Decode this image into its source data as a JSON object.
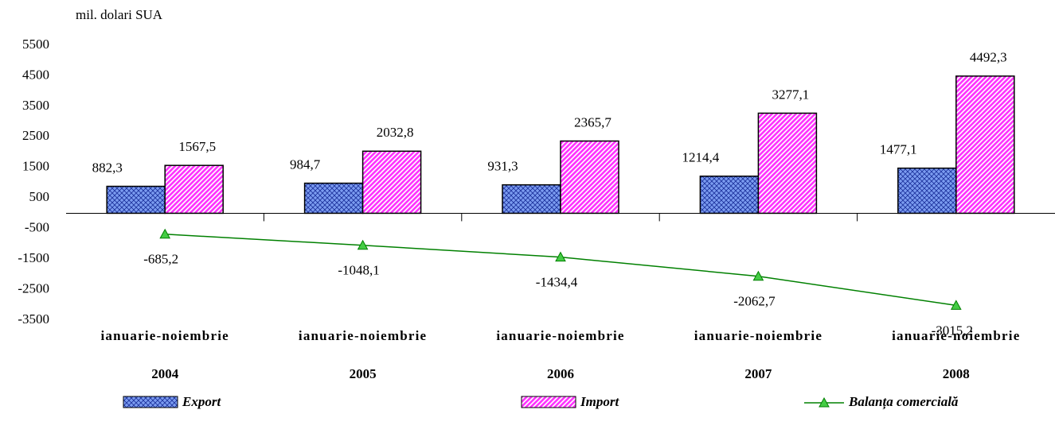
{
  "chart_data": {
    "type": "bar",
    "y_label": "mil. dolari SUA",
    "categories": [
      [
        "ianuarie-noiembrie",
        "2004"
      ],
      [
        "ianuarie-noiembrie",
        "2005"
      ],
      [
        "ianuarie-noiembrie",
        "2006"
      ],
      [
        "ianuarie-noiembrie",
        "2007"
      ],
      [
        "ianuarie-noiembrie",
        "2008"
      ]
    ],
    "series": [
      {
        "name": "Export",
        "type": "bar",
        "color": "#7b9cf0",
        "values": [
          882.3,
          984.7,
          931.3,
          1214.4,
          1477.1
        ],
        "value_labels": [
          "882,3",
          "984,7",
          "931,3",
          "1214,4",
          "1477,1"
        ]
      },
      {
        "name": "Import",
        "type": "bar",
        "color": "#ff33ff",
        "values": [
          1567.5,
          2032.8,
          2365.7,
          3277.1,
          4492.3
        ],
        "value_labels": [
          "1567,5",
          "2032,8",
          "2365,7",
          "3277,1",
          "4492,3"
        ]
      },
      {
        "name": "Balanța comercială",
        "type": "line",
        "color": "#008000",
        "values": [
          -685.2,
          -1048.1,
          -1434.4,
          -2062.7,
          -3015.2
        ],
        "value_labels": [
          "-685,2",
          "-1048,1",
          "-1434,4",
          "-2062,7",
          "-3015,2"
        ]
      }
    ],
    "ylim": [
      -3500,
      5500
    ],
    "yticks": [
      -3500,
      -2500,
      -1500,
      -500,
      500,
      1500,
      2500,
      3500,
      4500,
      5500
    ],
    "legend": "bottom"
  }
}
